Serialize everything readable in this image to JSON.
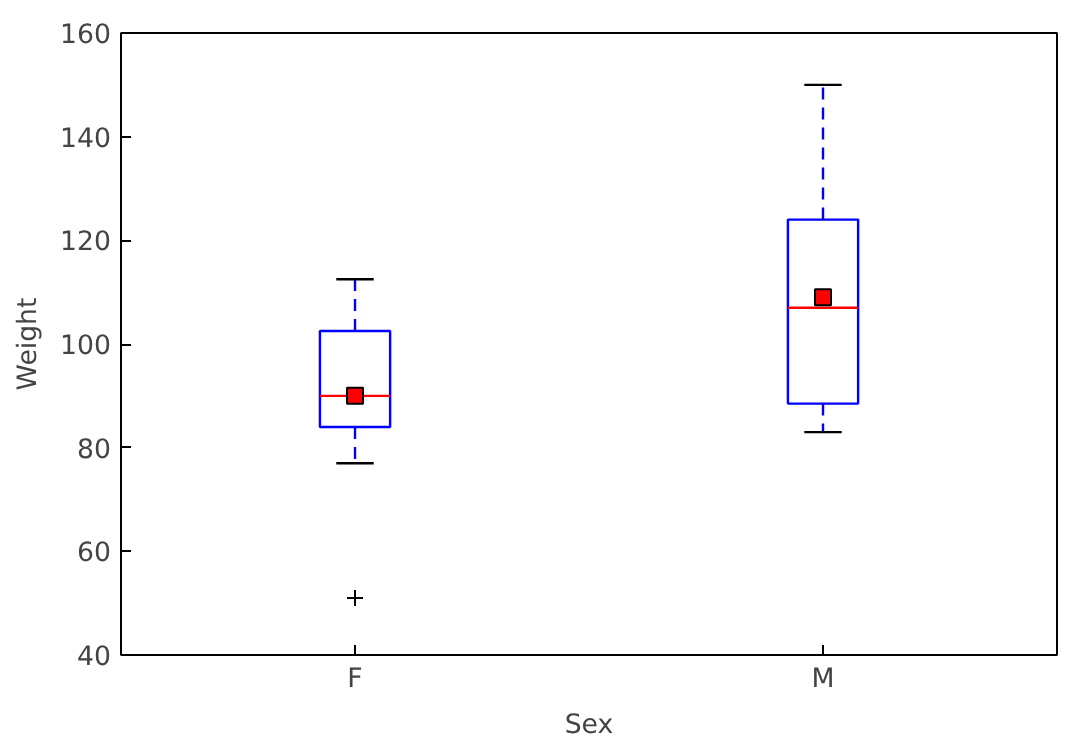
{
  "chart_data": {
    "type": "box",
    "xlabel": "Sex",
    "ylabel": "Weight",
    "categories": [
      "F",
      "M"
    ],
    "ylim": [
      40,
      160
    ],
    "yticks": [
      40,
      60,
      80,
      100,
      120,
      140,
      160
    ],
    "grid": false,
    "series": [
      {
        "color": "#0000ff",
        "boxes": [
          {
            "low": 77,
            "q1": 84,
            "median": 90,
            "q3": 102.5,
            "high": 112.5,
            "mean": 90,
            "outliers": [
              51
            ]
          },
          {
            "low": 83,
            "q1": 88.5,
            "median": 107,
            "q3": 124,
            "high": 150,
            "mean": 109
          }
        ]
      }
    ]
  }
}
